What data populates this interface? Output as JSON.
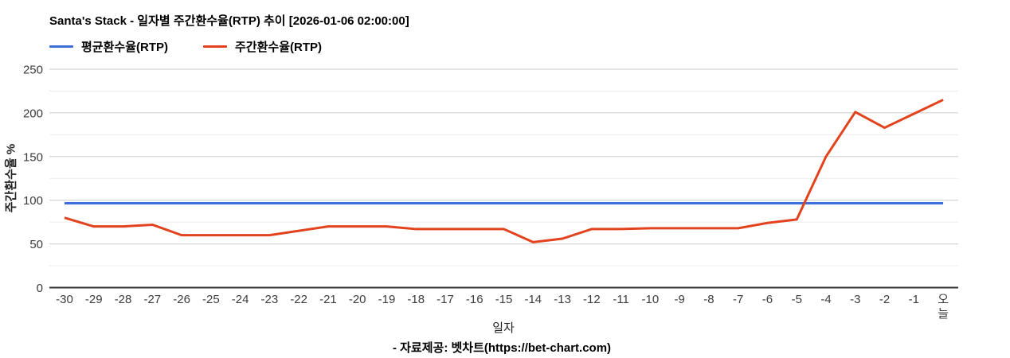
{
  "header": {
    "title": "Santa's Stack - 일자별 주간환수율(RTP) 추이 [2026-01-06 02:00:00]"
  },
  "legend": {
    "items": [
      {
        "label": "평균환수율(RTP)",
        "color": "#3b6ed8"
      },
      {
        "label": "주간환수율(RTP)",
        "color": "#e2431e"
      }
    ]
  },
  "chart_data": {
    "type": "line",
    "title": "Santa's Stack - 일자별 주간환수율(RTP) 추이 [2026-01-06 02:00:00]",
    "xlabel": "일자",
    "ylabel": "주간환수율 %",
    "ylim": [
      0,
      250
    ],
    "yticks": [
      0,
      50,
      100,
      150,
      200,
      250
    ],
    "minor_yticks": [
      25,
      75,
      125,
      175,
      225
    ],
    "grid": true,
    "legend_position": "top-left",
    "categories": [
      "-30",
      "-29",
      "-28",
      "-27",
      "-26",
      "-25",
      "-24",
      "-23",
      "-22",
      "-21",
      "-20",
      "-19",
      "-18",
      "-17",
      "-16",
      "-15",
      "-14",
      "-13",
      "-12",
      "-11",
      "-10",
      "-9",
      "-8",
      "-7",
      "-6",
      "-5",
      "-4",
      "-3",
      "-2",
      "-1",
      "오늘"
    ],
    "series": [
      {
        "name": "평균환수율(RTP)",
        "color": "#3b6ed8",
        "style": "constant",
        "value": 96.5
      },
      {
        "name": "주간환수율(RTP)",
        "color": "#e2431e",
        "values": [
          80,
          70,
          70,
          72,
          60,
          60,
          60,
          60,
          65,
          70,
          70,
          70,
          67,
          67,
          67,
          67,
          52,
          56,
          67,
          67,
          68,
          68,
          68,
          68,
          74,
          78,
          150,
          201,
          183,
          199,
          215
        ]
      }
    ]
  },
  "footer": {
    "text": "- 자료제공: 벳차트(https://bet-chart.com)"
  }
}
